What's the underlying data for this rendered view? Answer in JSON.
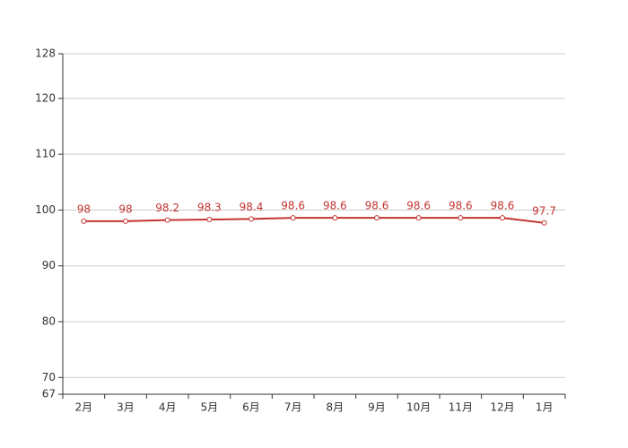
{
  "chart_data": {
    "type": "line",
    "categories": [
      "2月",
      "3月",
      "4月",
      "5月",
      "6月",
      "7月",
      "8月",
      "9月",
      "10月",
      "11月",
      "12月",
      "1月"
    ],
    "series": [
      {
        "color": "#c23531",
        "values": [
          98,
          98,
          98.2,
          98.3,
          98.4,
          98.6,
          98.6,
          98.6,
          98.6,
          98.6,
          98.6,
          97.7
        ]
      }
    ],
    "ylim": [
      67,
      128
    ],
    "yticks": [
      67,
      70,
      80,
      90,
      100,
      110,
      120,
      128
    ],
    "grid": true
  }
}
